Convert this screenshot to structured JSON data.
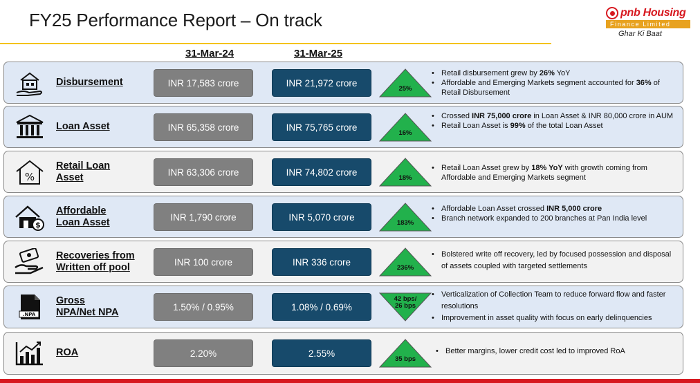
{
  "header": {
    "title": "FY25 Performance Report – On track",
    "logo": {
      "brand": "pnb Housing",
      "subline": "Finance Limited",
      "tagline": "Ghar Ki Baat"
    }
  },
  "columns": {
    "prev": "31-Mar-24",
    "curr": "31-Mar-25"
  },
  "rows": [
    {
      "icon": "house-hand-icon",
      "metric": "Disbursement",
      "prev": "INR 17,583 crore",
      "curr": "INR 21,972 crore",
      "change": [
        "25%"
      ],
      "direction": "up",
      "bullets": [
        [
          {
            "t": "Retail disbursement grew by "
          },
          {
            "t": "26%",
            "b": true
          },
          {
            "t": " YoY"
          }
        ],
        [
          {
            "t": "Affordable and Emerging Markets segment accounted for "
          },
          {
            "t": "36%",
            "b": true
          },
          {
            "t": " of Retail Disbursement"
          }
        ]
      ]
    },
    {
      "icon": "bank-building-icon",
      "metric": "Loan Asset",
      "prev": "INR 65,358 crore",
      "curr": "INR 75,765 crore",
      "change": [
        "16%"
      ],
      "direction": "up",
      "bullets": [
        [
          {
            "t": "Crossed "
          },
          {
            "t": "INR 75,000 crore",
            "b": true
          },
          {
            "t": " in Loan Asset & INR 80,000 crore  in AUM"
          }
        ],
        [
          {
            "t": "Retail Loan Asset is "
          },
          {
            "t": "99%",
            "b": true
          },
          {
            "t": " of the total Loan Asset"
          }
        ]
      ]
    },
    {
      "icon": "house-percent-icon",
      "metric": "Retail Loan Asset",
      "prev": "INR 63,306 crore",
      "curr": "INR 74,802 crore",
      "change": [
        "18%"
      ],
      "direction": "up",
      "bullets": [
        [
          {
            "t": "Retail Loan Asset grew by "
          },
          {
            "t": "18% YoY",
            "b": true
          },
          {
            "t": " with growth coming from Affordable and Emerging Markets segment"
          }
        ]
      ]
    },
    {
      "icon": "house-dollar-icon",
      "metric": "Affordable Loan Asset",
      "prev": "INR 1,790 crore",
      "curr": "INR 5,070 crore",
      "change": [
        "183%"
      ],
      "direction": "up",
      "bullets": [
        [
          {
            "t": "Affordable Loan Asset crossed "
          },
          {
            "t": "INR 5,000 crore",
            "b": true
          }
        ],
        [
          {
            "t": "Branch network expanded to 200 branches at Pan India level"
          }
        ]
      ]
    },
    {
      "icon": "money-hand-icon",
      "metric": "Recoveries from Written off pool",
      "prev": "INR 100 crore",
      "curr": "INR 336 crore",
      "change": [
        "236%"
      ],
      "direction": "up",
      "bullets": [
        [
          {
            "t": "Bolstered write off recovery, led by focused possession and disposal of assets coupled with targeted settlements"
          }
        ]
      ]
    },
    {
      "icon": "npa-file-icon",
      "metric": "Gross NPA/Net NPA",
      "prev": "1.50% / 0.95%",
      "curr": "1.08% / 0.69%",
      "change": [
        "42 bps/",
        "26 bps"
      ],
      "direction": "down",
      "bullets": [
        [
          {
            "t": "Verticalization of Collection Team to reduce forward flow and faster resolutions"
          }
        ],
        [
          {
            "t": "Improvement in asset quality with focus on early delinquencies"
          }
        ]
      ]
    },
    {
      "icon": "bar-chart-growth-icon",
      "metric": "ROA",
      "prev": "2.20%",
      "curr": "2.55%",
      "change": [
        "35 bps"
      ],
      "direction": "up",
      "bullets": [
        [
          {
            "t": "Better margins, lower credit cost led to improved RoA"
          }
        ]
      ]
    }
  ],
  "colors": {
    "accent": "#f3c21a",
    "brand_red": "#d71920",
    "prev_box": "#808080",
    "curr_box": "#174a6b",
    "triangle": "#22b14c"
  }
}
